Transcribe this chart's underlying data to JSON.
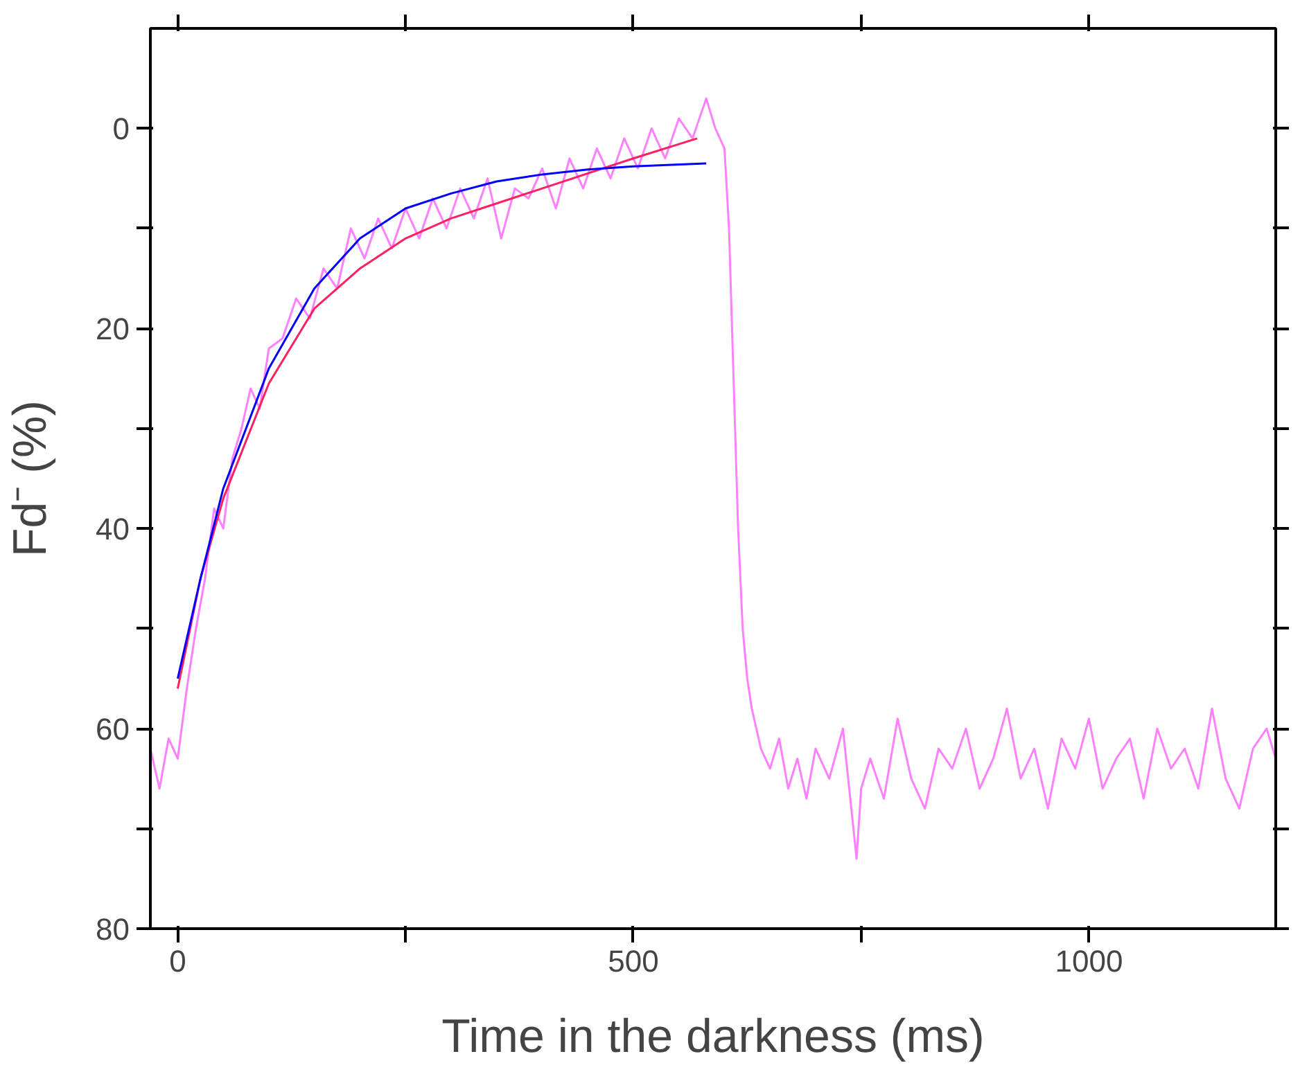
{
  "chart_data": {
    "type": "line",
    "xlabel": "Time in the darkness (ms)",
    "ylabel": "Fd⁻ (%)",
    "xlim": [
      -30,
      1205
    ],
    "ylim": [
      80,
      -10
    ],
    "xticks": [
      0,
      {
        "value": 250,
        "label": null
      },
      500,
      {
        "value": 750,
        "label": null
      },
      1000
    ],
    "yticks": [
      0,
      {
        "value": 10,
        "label": null
      },
      20,
      {
        "value": 30,
        "label": null
      },
      40,
      {
        "value": 50,
        "label": null
      },
      60,
      {
        "value": 70,
        "label": null
      },
      80
    ],
    "series": [
      {
        "color": "#ff80ff",
        "x": [
          -30,
          -20,
          -10,
          0,
          10,
          20,
          30,
          40,
          50,
          60,
          70,
          80,
          90,
          100,
          115,
          130,
          145,
          160,
          175,
          190,
          205,
          220,
          235,
          250,
          265,
          280,
          295,
          310,
          325,
          340,
          355,
          370,
          385,
          400,
          415,
          430,
          445,
          460,
          475,
          490,
          505,
          520,
          535,
          550,
          565,
          580,
          590,
          600,
          605,
          610,
          615,
          620,
          625,
          630,
          640,
          650,
          660,
          670,
          680,
          690,
          700,
          715,
          730,
          745,
          750,
          760,
          775,
          790,
          805,
          820,
          835,
          850,
          865,
          880,
          895,
          910,
          925,
          940,
          955,
          970,
          985,
          1000,
          1015,
          1030,
          1045,
          1060,
          1075,
          1090,
          1105,
          1120,
          1135,
          1150,
          1165,
          1180,
          1195,
          1205
        ],
        "values": [
          62,
          66,
          61,
          63,
          56,
          50,
          45,
          38,
          40,
          33,
          30,
          26,
          28,
          22,
          21,
          17,
          19,
          14,
          16,
          10,
          13,
          9,
          12,
          8,
          11,
          7,
          10,
          6,
          9,
          5,
          11,
          6,
          7,
          4,
          8,
          3,
          6,
          2,
          5,
          1,
          4,
          0,
          3,
          -1,
          1,
          -3,
          0,
          2,
          10,
          25,
          40,
          50,
          55,
          58,
          62,
          64,
          61,
          66,
          63,
          67,
          62,
          65,
          60,
          73,
          66,
          63,
          67,
          59,
          65,
          68,
          62,
          64,
          60,
          66,
          63,
          58,
          65,
          62,
          68,
          61,
          64,
          59,
          66,
          63,
          61,
          67,
          60,
          64,
          62,
          66,
          58,
          65,
          68,
          62,
          60,
          63
        ]
      },
      {
        "color": "#ff2060",
        "x": [
          0,
          25,
          50,
          100,
          150,
          200,
          250,
          300,
          350,
          400,
          450,
          500,
          570
        ],
        "values": [
          56,
          45,
          37,
          25.5,
          18,
          14,
          11,
          9,
          7.5,
          6,
          4.5,
          3,
          1
        ]
      },
      {
        "color": "#0000ff",
        "x": [
          0,
          25,
          50,
          100,
          150,
          200,
          250,
          300,
          350,
          400,
          450,
          500,
          580
        ],
        "values": [
          55,
          45,
          36,
          24,
          16,
          11,
          8,
          6.5,
          5.3,
          4.6,
          4.1,
          3.8,
          3.5
        ]
      }
    ]
  }
}
